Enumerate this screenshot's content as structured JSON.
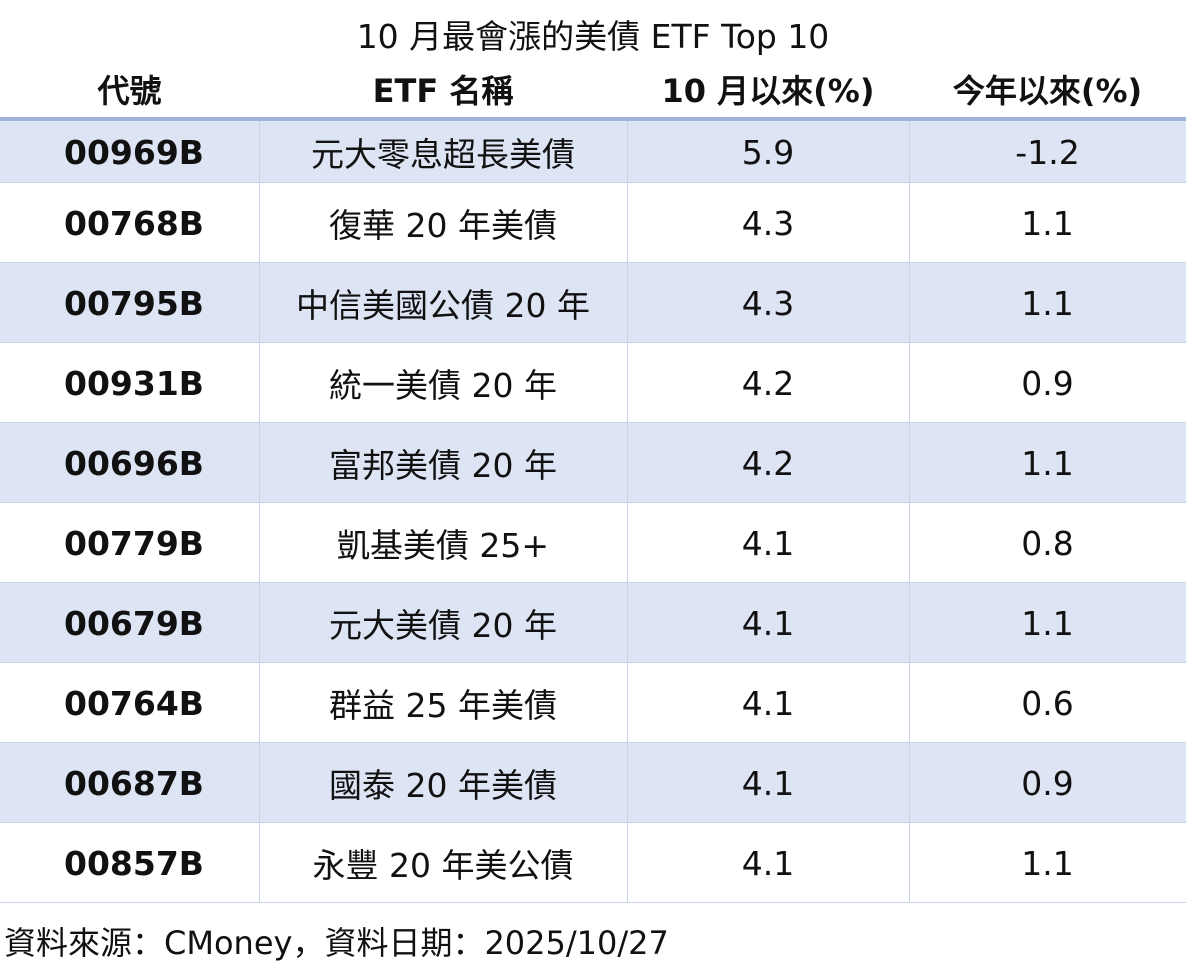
{
  "title": "10 月最會漲的美債 ETF Top 10",
  "table": {
    "header": [
      "代號",
      "ETF 名稱",
      "10 月以來(%)",
      "今年以來(%)"
    ],
    "rows": [
      [
        "00969B",
        "元大零息超長美債",
        "5.9",
        "-1.2"
      ],
      [
        "00768B",
        "復華 20 年美債",
        "4.3",
        "1.1"
      ],
      [
        "00795B",
        "中信美國公債 20 年",
        "4.3",
        "1.1"
      ],
      [
        "00931B",
        "統一美債 20 年",
        "4.2",
        "0.9"
      ],
      [
        "00696B",
        "富邦美債 20 年",
        "4.2",
        "1.1"
      ],
      [
        "00779B",
        "凱基美債 25+",
        "4.1",
        "0.8"
      ],
      [
        "00679B",
        "元大美債 20 年",
        "4.1",
        "1.1"
      ],
      [
        "00764B",
        "群益 25 年美債",
        "4.1",
        "0.6"
      ],
      [
        "00687B",
        "國泰 20 年美債",
        "4.1",
        "0.9"
      ],
      [
        "00857B",
        "永豐 20 年美公債",
        "4.1",
        "1.1"
      ]
    ]
  },
  "footer": "資料來源：CMoney，資料日期：2025/10/27"
}
